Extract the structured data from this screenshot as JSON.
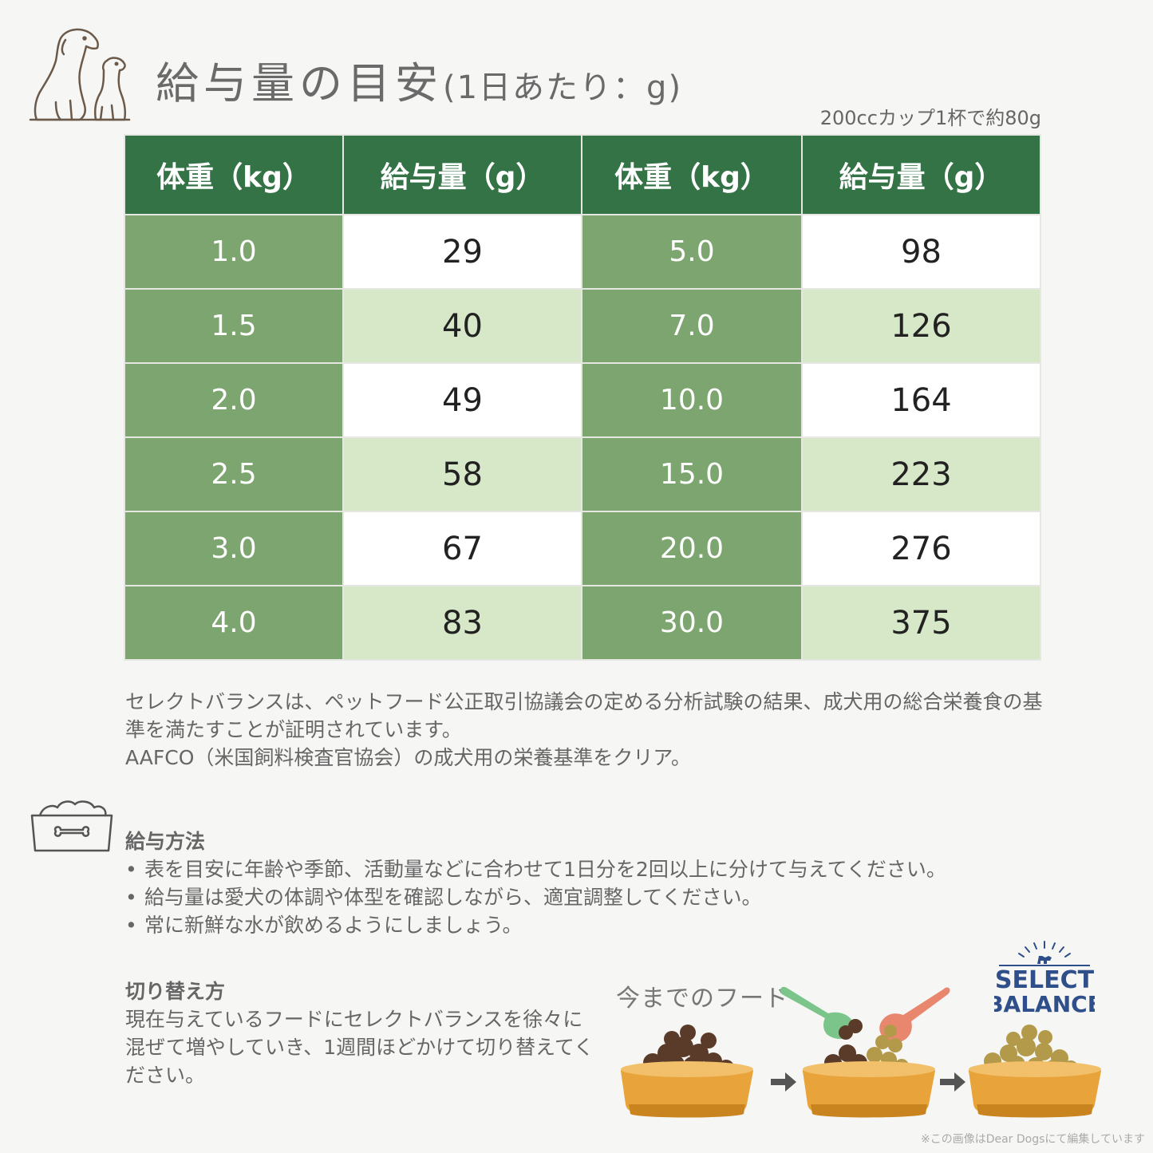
{
  "title": "給与量の目安",
  "title_sub": "(1日あたり：g)",
  "cup_note": "200ccカップ1杯で約80g",
  "table": {
    "headers": [
      "体重（kg）",
      "給与量（g）",
      "体重（kg）",
      "給与量（g）"
    ],
    "rows": [
      {
        "w1": "1.0",
        "g1": "29",
        "w2": "5.0",
        "g2": "98"
      },
      {
        "w1": "1.5",
        "g1": "40",
        "w2": "7.0",
        "g2": "126"
      },
      {
        "w1": "2.0",
        "g1": "49",
        "w2": "10.0",
        "g2": "164"
      },
      {
        "w1": "2.5",
        "g1": "58",
        "w2": "15.0",
        "g2": "223"
      },
      {
        "w1": "3.0",
        "g1": "67",
        "w2": "20.0",
        "g2": "276"
      },
      {
        "w1": "4.0",
        "g1": "83",
        "w2": "30.0",
        "g2": "375"
      }
    ]
  },
  "notes": {
    "line1": "セレクトバランスは、ペットフード公正取引協議会の定める分析試験の結果、成犬用の総合栄養食の基準を満たすことが証明されています。",
    "line2": "AAFCO（米国飼料検査官協会）の成犬用の栄養基準をクリア。"
  },
  "feeding": {
    "title": "給与方法",
    "items": [
      "表を目安に年齢や季節、活動量などに合わせて1日分を2回以上に分けて与えてください。",
      "給与量は愛犬の体調や体型を確認しながら、適宜調整してください。",
      "常に新鮮な水が飲めるようにしましょう。"
    ]
  },
  "switching": {
    "title": "切り替え方",
    "text": "現在与えているフードにセレクトバランスを徐々に混ぜて増やしていき、1週間ほどかけて切り替えてください。"
  },
  "illustration": {
    "current_food_label": "今までのフード",
    "logo_line1": "SELECT",
    "logo_line2": "BALANCE"
  },
  "credit": "※この画像はDear Dogsにて編集しています",
  "colors": {
    "header_green": "#347345",
    "weight_green": "#7da56f",
    "light_green": "#d6e8c8",
    "bowl_orange": "#e8a33a",
    "logo_blue": "#2f4f8a"
  },
  "icons": [
    "dogs-icon",
    "bowl-bone-icon",
    "arrow-right-icon",
    "scoop-icon"
  ]
}
